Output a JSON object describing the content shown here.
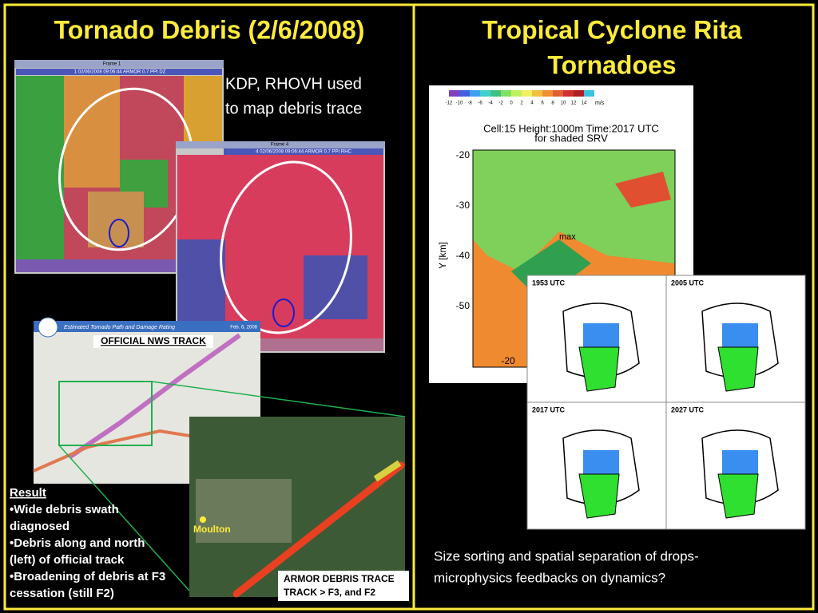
{
  "left_title": "Tornado Debris (2/6/2008)",
  "right_title": [
    "Tropical Cyclone Rita",
    "Tornadoes"
  ],
  "radar_note": [
    "KDP, RHOVH used",
    "to map debris trace"
  ],
  "radar_frames": [
    {
      "window": "Frame 1",
      "caption": "1 02/06/2008 09:06:44 ARMOR 0.7 PPI DZ"
    },
    {
      "window": "Frame 4",
      "caption": "4 02/06/2008 09:06:44 ARMOR 0.7 PPI RHC"
    }
  ],
  "nws_map": {
    "header": "Estimated Tornado Path and Damage Rating",
    "date": "Feb. 6, 2008",
    "label": "OFFICIAL NWS TRACK"
  },
  "debris_map": {
    "town": "Moulton",
    "caption": [
      "ARMOR DEBRIS TRACE",
      "TRACK > F3, and F2"
    ]
  },
  "result": {
    "heading": "Result",
    "lines": [
      "•Wide debris swath",
      " diagnosed",
      "•Debris along and north",
      " (left) of official track",
      "•Broadening of debris at F3",
      " cessation (still F2)"
    ]
  },
  "cyclone_plot": {
    "colorbar": [
      -12,
      -10,
      -8,
      -6,
      -4,
      -2,
      0,
      2,
      4,
      6,
      8,
      10,
      12,
      14
    ],
    "unit": "m/s",
    "title": [
      "Cell:15 Height:1000m Time:2017 UTC",
      "for shaded SRV"
    ],
    "y_label": "Y [km]",
    "y_ticks": [
      -20,
      -30,
      -40,
      -50
    ],
    "x_tick": -20,
    "marker": "max"
  },
  "panels": [
    "1953 UTC",
    "2005 UTC",
    "2017 UTC",
    "2027 UTC"
  ],
  "caption": [
    "Size sorting and spatial separation of drops-",
    "microphysics feedbacks on dynamics?"
  ]
}
